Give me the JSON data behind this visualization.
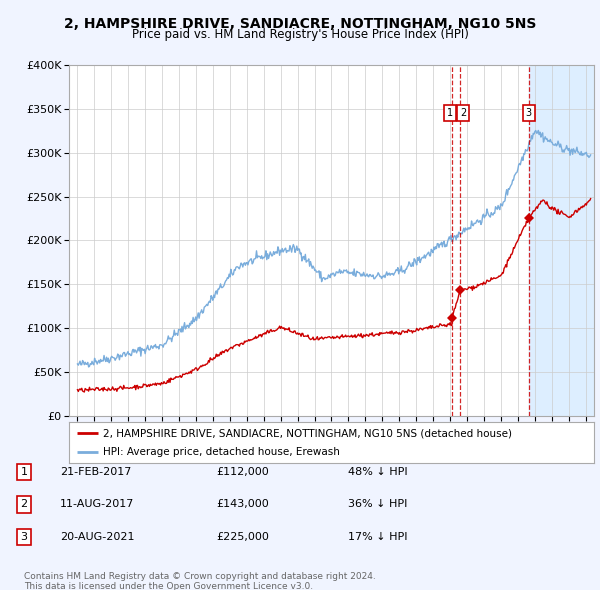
{
  "title": "2, HAMPSHIRE DRIVE, SANDIACRE, NOTTINGHAM, NG10 5NS",
  "subtitle": "Price paid vs. HM Land Registry's House Price Index (HPI)",
  "legend_line1": "2, HAMPSHIRE DRIVE, SANDIACRE, NOTTINGHAM, NG10 5NS (detached house)",
  "legend_line2": "HPI: Average price, detached house, Erewash",
  "footer1": "Contains HM Land Registry data © Crown copyright and database right 2024.",
  "footer2": "This data is licensed under the Open Government Licence v3.0.",
  "transactions": [
    {
      "num": 1,
      "date": "21-FEB-2017",
      "price": 112000,
      "hpi_diff": "48% ↓ HPI",
      "year": 2017.13
    },
    {
      "num": 2,
      "date": "11-AUG-2017",
      "price": 143000,
      "hpi_diff": "36% ↓ HPI",
      "year": 2017.61
    },
    {
      "num": 3,
      "date": "20-AUG-2021",
      "price": 225000,
      "hpi_diff": "17% ↓ HPI",
      "year": 2021.64
    }
  ],
  "red_color": "#cc0000",
  "blue_color": "#7aaddc",
  "shade_color": "#ddeeff",
  "bg_color": "#f0f4ff",
  "plot_bg": "#ffffff",
  "grid_color": "#cccccc",
  "ylim": [
    0,
    400000
  ],
  "xlim_start": 1994.5,
  "xlim_end": 2025.5
}
